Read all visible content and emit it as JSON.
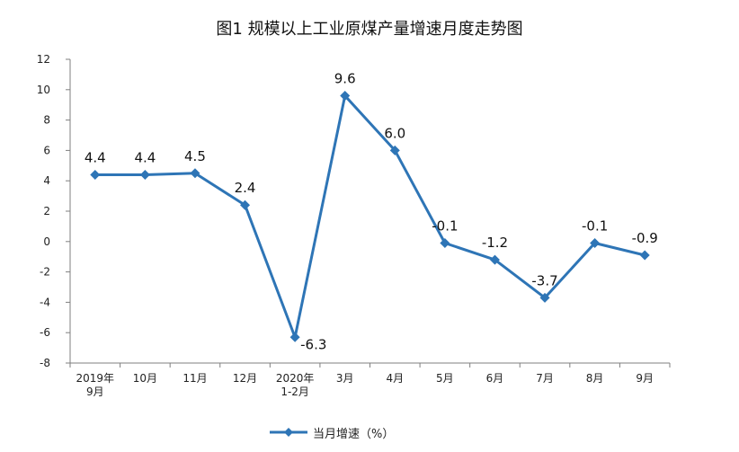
{
  "title": "图1  规模以上工业原煤产量增速月度走势图",
  "legend_label": "当月增速（%）",
  "colors": {
    "series": "#2E75B6",
    "axis": "#7f7f7f"
  },
  "chart_data": {
    "type": "line",
    "categories": [
      "2019年\n9月",
      "10月",
      "11月",
      "12月",
      "2020年\n1-2月",
      "3月",
      "4月",
      "5月",
      "6月",
      "7月",
      "8月",
      "9月"
    ],
    "series": [
      {
        "name": "当月增速（%）",
        "values": [
          4.4,
          4.4,
          4.5,
          2.4,
          -6.3,
          9.6,
          6.0,
          -0.1,
          -1.2,
          -3.7,
          -0.1,
          -0.9
        ]
      }
    ],
    "data_labels": [
      "4.4",
      "4.4",
      "4.5",
      "2.4",
      "-6.3",
      "9.6",
      "6.0",
      "-0.1",
      "-1.2",
      "-3.7",
      "-0.1",
      "-0.9"
    ],
    "ylim": [
      -8,
      12
    ],
    "yticks": [
      12,
      10,
      8,
      6,
      4,
      2,
      0,
      -2,
      -4,
      -6,
      -8
    ],
    "ytick_labels": [
      "12",
      "10",
      "8",
      "6",
      "4",
      "2",
      "0",
      "-2",
      "-4",
      "-6",
      "-8"
    ],
    "marker": "diamond",
    "grid": false,
    "legend_position": "bottom"
  }
}
